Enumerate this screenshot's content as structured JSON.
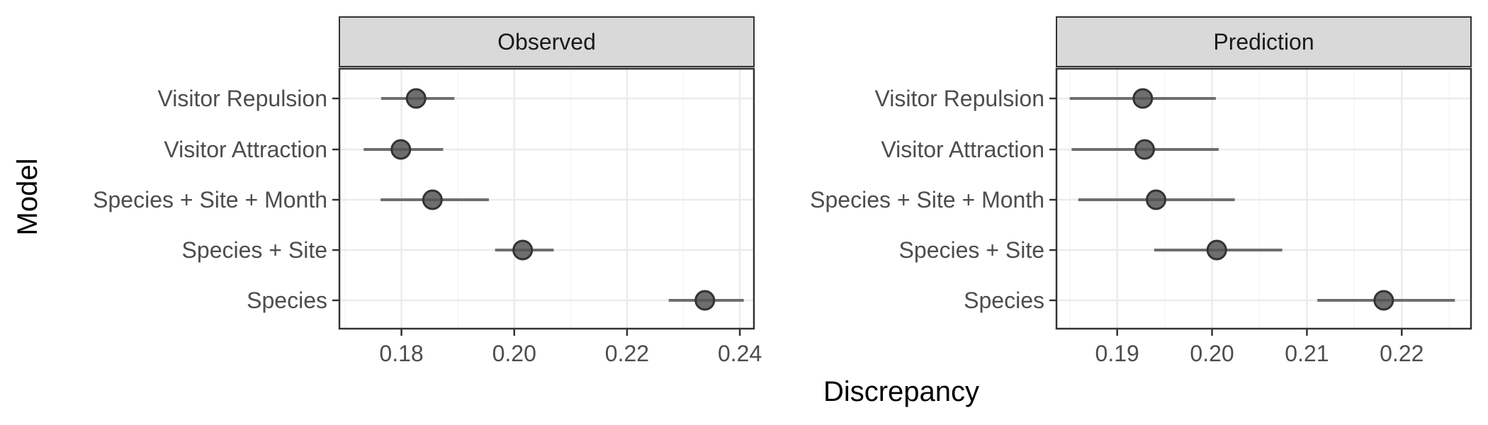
{
  "chart_data": {
    "type": "scatter",
    "xlabel": "Discrepancy",
    "ylabel": "Model",
    "categories": [
      "Visitor Repulsion",
      "Visitor Attraction",
      "Species + Site + Month",
      "Species + Site",
      "Species"
    ],
    "panels": [
      {
        "title": "Observed",
        "xlim": [
          0.169,
          0.2425
        ],
        "xticks": [
          0.18,
          0.2,
          0.22,
          0.24
        ],
        "xtick_labels": [
          "0.18",
          "0.20",
          "0.22",
          "0.24"
        ],
        "points": [
          {
            "model": "Visitor Repulsion",
            "value": 0.1826,
            "low": 0.1764,
            "high": 0.1894
          },
          {
            "model": "Visitor Attraction",
            "value": 0.1799,
            "low": 0.1733,
            "high": 0.1874
          },
          {
            "model": "Species + Site + Month",
            "value": 0.1855,
            "low": 0.1763,
            "high": 0.1955
          },
          {
            "model": "Species + Site",
            "value": 0.2015,
            "low": 0.1966,
            "high": 0.207
          },
          {
            "model": "Species",
            "value": 0.2338,
            "low": 0.2274,
            "high": 0.2407
          }
        ]
      },
      {
        "title": "Prediction",
        "xlim": [
          0.1836,
          0.2273
        ],
        "xticks": [
          0.19,
          0.2,
          0.21,
          0.22
        ],
        "xtick_labels": [
          "0.19",
          "0.20",
          "0.21",
          "0.22"
        ],
        "points": [
          {
            "model": "Visitor Repulsion",
            "value": 0.1927,
            "low": 0.185,
            "high": 0.2004
          },
          {
            "model": "Visitor Attraction",
            "value": 0.1929,
            "low": 0.1852,
            "high": 0.2007
          },
          {
            "model": "Species + Site + Month",
            "value": 0.1941,
            "low": 0.1859,
            "high": 0.2024
          },
          {
            "model": "Species + Site",
            "value": 0.2005,
            "low": 0.1939,
            "high": 0.2074
          },
          {
            "model": "Species",
            "value": 0.2181,
            "low": 0.2111,
            "high": 0.2256
          }
        ]
      }
    ],
    "grid": true,
    "theme": "bw",
    "colors": {
      "point_fill": "#555555",
      "point_stroke": "#333333",
      "errorbar": "#6e6e6e",
      "strip_fill": "#d9d9d9",
      "panel_border": "#333333",
      "grid_major": "#ebebeb",
      "grid_minor": "#f5f5f5"
    }
  }
}
